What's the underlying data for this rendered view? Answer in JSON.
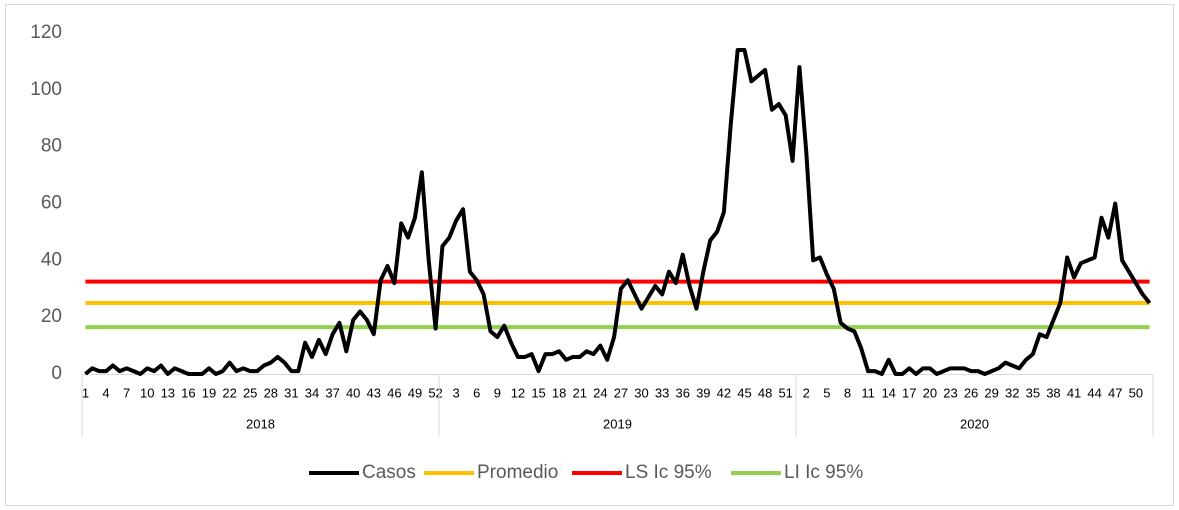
{
  "chart_data": {
    "type": "line",
    "categories": [
      1,
      null,
      null,
      4,
      null,
      null,
      7,
      null,
      null,
      10,
      null,
      null,
      13,
      null,
      null,
      16,
      null,
      null,
      19,
      null,
      null,
      22,
      null,
      null,
      25,
      null,
      null,
      28,
      null,
      null,
      31,
      null,
      null,
      34,
      null,
      null,
      37,
      null,
      null,
      40,
      null,
      null,
      43,
      null,
      null,
      46,
      null,
      null,
      49,
      null,
      null,
      52,
      null,
      null,
      3,
      null,
      null,
      6,
      null,
      null,
      9,
      null,
      null,
      12,
      null,
      null,
      15,
      null,
      null,
      18,
      null,
      null,
      21,
      null,
      null,
      24,
      null,
      null,
      27,
      null,
      null,
      30,
      null,
      null,
      33,
      null,
      null,
      36,
      null,
      null,
      39,
      null,
      null,
      42,
      null,
      null,
      45,
      null,
      null,
      48,
      null,
      null,
      51,
      null,
      null,
      2,
      null,
      null,
      5,
      null,
      null,
      8,
      null,
      null,
      11,
      null,
      null,
      14,
      null,
      null,
      17,
      null,
      null,
      20,
      null,
      null,
      23,
      null,
      null,
      26,
      null,
      null,
      29,
      null,
      null,
      32,
      null,
      null,
      35,
      null,
      null,
      38,
      null,
      null,
      41,
      null,
      null,
      44,
      null,
      null,
      47,
      null,
      null,
      50,
      null,
      null
    ],
    "groups": [
      {
        "label": "2018",
        "span": 52
      },
      {
        "label": "2019",
        "span": 52
      },
      {
        "label": "2020",
        "span": 52
      }
    ],
    "series": [
      {
        "name": "Casos",
        "color": "#000000",
        "values": [
          0,
          2,
          1,
          1,
          3,
          1,
          2,
          1,
          0,
          2,
          1,
          3,
          0,
          2,
          1,
          0,
          0,
          0,
          2,
          0,
          1,
          4,
          1,
          2,
          1,
          1,
          3,
          4,
          6,
          4,
          1,
          1,
          11,
          6,
          12,
          7,
          14,
          18,
          8,
          19,
          22,
          19,
          14,
          33,
          38,
          32,
          53,
          48,
          55,
          71,
          40,
          16,
          45,
          48,
          54,
          58,
          36,
          33,
          28,
          15,
          13,
          17,
          11,
          6,
          6,
          7,
          1,
          7,
          7,
          8,
          5,
          6,
          6,
          8,
          7,
          10,
          5,
          13,
          30,
          33,
          28,
          23,
          27,
          31,
          28,
          36,
          32,
          42,
          31,
          23,
          36,
          47,
          50,
          57,
          88,
          114,
          114,
          103,
          105,
          107,
          93,
          95,
          91,
          75,
          108,
          78,
          40,
          41,
          35,
          30,
          18,
          16,
          15,
          9,
          1,
          1,
          0,
          5,
          0,
          0,
          2,
          0,
          2,
          2,
          0,
          1,
          2,
          2,
          2,
          1,
          1,
          0,
          1,
          2,
          4,
          3,
          2,
          5,
          7,
          14,
          13,
          19,
          25,
          41,
          34,
          39,
          40,
          41,
          55,
          48,
          60,
          40,
          36,
          32,
          28,
          25
        ]
      },
      {
        "name": "Promedio",
        "color": "#ffc000",
        "values": [
          25,
          25,
          25,
          25,
          25,
          25,
          25,
          25,
          25,
          25,
          25,
          25,
          25,
          25,
          25,
          25,
          25,
          25,
          25,
          25,
          25,
          25,
          25,
          25,
          25,
          25,
          25,
          25,
          25,
          25,
          25,
          25,
          25,
          25,
          25,
          25,
          25,
          25,
          25,
          25,
          25,
          25,
          25,
          25,
          25,
          25,
          25,
          25,
          25,
          25,
          25,
          25,
          25,
          25,
          25,
          25,
          25,
          25,
          25,
          25,
          25,
          25,
          25,
          25,
          25,
          25,
          25,
          25,
          25,
          25,
          25,
          25,
          25,
          25,
          25,
          25,
          25,
          25,
          25,
          25,
          25,
          25,
          25,
          25,
          25,
          25,
          25,
          25,
          25,
          25,
          25,
          25,
          25,
          25,
          25,
          25,
          25,
          25,
          25,
          25,
          25,
          25,
          25,
          25,
          25,
          25,
          25,
          25,
          25,
          25,
          25,
          25,
          25,
          25,
          25,
          25,
          25,
          25,
          25,
          25,
          25,
          25,
          25,
          25,
          25,
          25,
          25,
          25,
          25,
          25,
          25,
          25,
          25,
          25,
          25,
          25,
          25,
          25,
          25,
          25,
          25,
          25,
          25,
          25,
          25,
          25,
          25,
          25,
          25,
          25,
          25,
          25,
          25,
          25,
          25,
          25
        ]
      },
      {
        "name": "LS Ic 95%",
        "color": "#ff0000",
        "values": [
          32.5,
          32.5,
          32.5,
          32.5,
          32.5,
          32.5,
          32.5,
          32.5,
          32.5,
          32.5,
          32.5,
          32.5,
          32.5,
          32.5,
          32.5,
          32.5,
          32.5,
          32.5,
          32.5,
          32.5,
          32.5,
          32.5,
          32.5,
          32.5,
          32.5,
          32.5,
          32.5,
          32.5,
          32.5,
          32.5,
          32.5,
          32.5,
          32.5,
          32.5,
          32.5,
          32.5,
          32.5,
          32.5,
          32.5,
          32.5,
          32.5,
          32.5,
          32.5,
          32.5,
          32.5,
          32.5,
          32.5,
          32.5,
          32.5,
          32.5,
          32.5,
          32.5,
          32.5,
          32.5,
          32.5,
          32.5,
          32.5,
          32.5,
          32.5,
          32.5,
          32.5,
          32.5,
          32.5,
          32.5,
          32.5,
          32.5,
          32.5,
          32.5,
          32.5,
          32.5,
          32.5,
          32.5,
          32.5,
          32.5,
          32.5,
          32.5,
          32.5,
          32.5,
          32.5,
          32.5,
          32.5,
          32.5,
          32.5,
          32.5,
          32.5,
          32.5,
          32.5,
          32.5,
          32.5,
          32.5,
          32.5,
          32.5,
          32.5,
          32.5,
          32.5,
          32.5,
          32.5,
          32.5,
          32.5,
          32.5,
          32.5,
          32.5,
          32.5,
          32.5,
          32.5,
          32.5,
          32.5,
          32.5,
          32.5,
          32.5,
          32.5,
          32.5,
          32.5,
          32.5,
          32.5,
          32.5,
          32.5,
          32.5,
          32.5,
          32.5,
          32.5,
          32.5,
          32.5,
          32.5,
          32.5,
          32.5,
          32.5,
          32.5,
          32.5,
          32.5,
          32.5,
          32.5,
          32.5,
          32.5,
          32.5,
          32.5,
          32.5,
          32.5,
          32.5,
          32.5,
          32.5,
          32.5,
          32.5,
          32.5,
          32.5,
          32.5,
          32.5,
          32.5,
          32.5,
          32.5,
          32.5,
          32.5,
          32.5,
          32.5,
          32.5,
          32.5
        ]
      },
      {
        "name": "LI Ic 95%",
        "color": "#92d050",
        "values": [
          16.5,
          16.5,
          16.5,
          16.5,
          16.5,
          16.5,
          16.5,
          16.5,
          16.5,
          16.5,
          16.5,
          16.5,
          16.5,
          16.5,
          16.5,
          16.5,
          16.5,
          16.5,
          16.5,
          16.5,
          16.5,
          16.5,
          16.5,
          16.5,
          16.5,
          16.5,
          16.5,
          16.5,
          16.5,
          16.5,
          16.5,
          16.5,
          16.5,
          16.5,
          16.5,
          16.5,
          16.5,
          16.5,
          16.5,
          16.5,
          16.5,
          16.5,
          16.5,
          16.5,
          16.5,
          16.5,
          16.5,
          16.5,
          16.5,
          16.5,
          16.5,
          16.5,
          16.5,
          16.5,
          16.5,
          16.5,
          16.5,
          16.5,
          16.5,
          16.5,
          16.5,
          16.5,
          16.5,
          16.5,
          16.5,
          16.5,
          16.5,
          16.5,
          16.5,
          16.5,
          16.5,
          16.5,
          16.5,
          16.5,
          16.5,
          16.5,
          16.5,
          16.5,
          16.5,
          16.5,
          16.5,
          16.5,
          16.5,
          16.5,
          16.5,
          16.5,
          16.5,
          16.5,
          16.5,
          16.5,
          16.5,
          16.5,
          16.5,
          16.5,
          16.5,
          16.5,
          16.5,
          16.5,
          16.5,
          16.5,
          16.5,
          16.5,
          16.5,
          16.5,
          16.5,
          16.5,
          16.5,
          16.5,
          16.5,
          16.5,
          16.5,
          16.5,
          16.5,
          16.5,
          16.5,
          16.5,
          16.5,
          16.5,
          16.5,
          16.5,
          16.5,
          16.5,
          16.5,
          16.5,
          16.5,
          16.5,
          16.5,
          16.5,
          16.5,
          16.5,
          16.5,
          16.5,
          16.5,
          16.5,
          16.5,
          16.5,
          16.5,
          16.5,
          16.5,
          16.5,
          16.5,
          16.5,
          16.5,
          16.5,
          16.5,
          16.5,
          16.5,
          16.5,
          16.5,
          16.5,
          16.5,
          16.5,
          16.5,
          16.5,
          16.5,
          16.5
        ]
      }
    ],
    "ylim": [
      0,
      120
    ],
    "yticks": [
      0,
      20,
      40,
      60,
      80,
      100,
      120
    ],
    "grid": false,
    "legend": "bottom"
  }
}
